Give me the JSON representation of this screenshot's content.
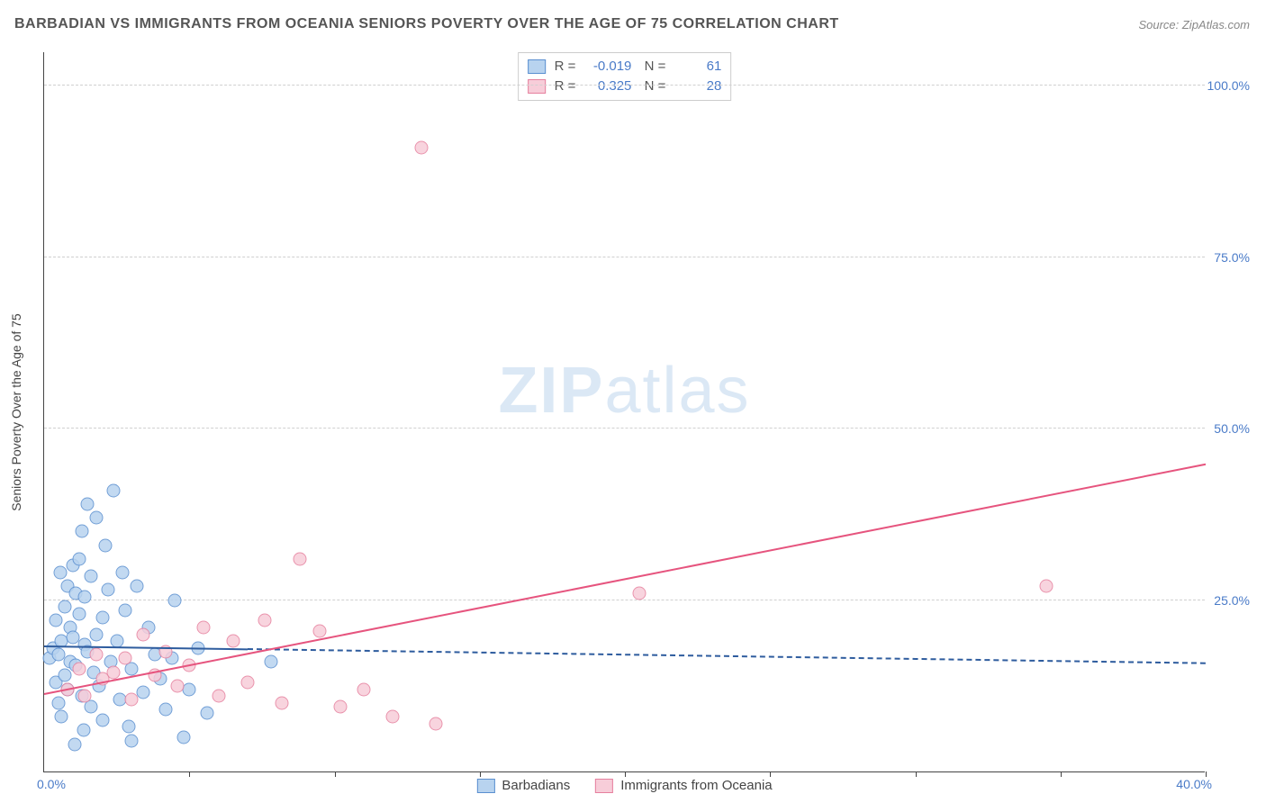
{
  "title": "BARBADIAN VS IMMIGRANTS FROM OCEANIA SENIORS POVERTY OVER THE AGE OF 75 CORRELATION CHART",
  "source": "Source: ZipAtlas.com",
  "watermark_a": "ZIP",
  "watermark_b": "atlas",
  "chart": {
    "y_label": "Seniors Poverty Over the Age of 75",
    "xlim": [
      0,
      40
    ],
    "ylim": [
      0,
      105
    ],
    "x_ticks_minor": [
      5,
      10,
      15,
      20,
      25,
      30,
      35,
      40
    ],
    "y_grid": [
      {
        "val": 25,
        "label": "25.0%"
      },
      {
        "val": 50,
        "label": "50.0%"
      },
      {
        "val": 75,
        "label": "75.0%"
      },
      {
        "val": 100,
        "label": "100.0%"
      }
    ],
    "x_origin_label": "0.0%",
    "x_end_label": "40.0%",
    "series": [
      {
        "name": "Barbadians",
        "fill": "#b8d3ef",
        "stroke": "#5a8fd0",
        "line_color": "#2e5c9e",
        "line_dash_after": 7,
        "trend": {
          "x1": 0,
          "y1": 18.5,
          "x2": 40,
          "y2": 16.0
        },
        "stats": {
          "R": "-0.019",
          "N": "61"
        },
        "points": [
          [
            0.2,
            16.5
          ],
          [
            0.3,
            18
          ],
          [
            0.4,
            13
          ],
          [
            0.4,
            22
          ],
          [
            0.5,
            10
          ],
          [
            0.5,
            17
          ],
          [
            0.6,
            19
          ],
          [
            0.6,
            8
          ],
          [
            0.7,
            14
          ],
          [
            0.7,
            24
          ],
          [
            0.8,
            27
          ],
          [
            0.8,
            12
          ],
          [
            0.9,
            21
          ],
          [
            0.9,
            16
          ],
          [
            1.0,
            30
          ],
          [
            1.0,
            19.5
          ],
          [
            1.1,
            26
          ],
          [
            1.1,
            15.5
          ],
          [
            1.2,
            31
          ],
          [
            1.2,
            23
          ],
          [
            1.3,
            35
          ],
          [
            1.3,
            11
          ],
          [
            1.4,
            25.5
          ],
          [
            1.4,
            18.5
          ],
          [
            1.5,
            39
          ],
          [
            1.5,
            17.5
          ],
          [
            1.6,
            9.5
          ],
          [
            1.6,
            28.5
          ],
          [
            1.7,
            14.5
          ],
          [
            1.8,
            37
          ],
          [
            1.8,
            20
          ],
          [
            1.9,
            12.5
          ],
          [
            2.0,
            22.5
          ],
          [
            2.0,
            7.5
          ],
          [
            2.1,
            33
          ],
          [
            2.2,
            26.5
          ],
          [
            2.3,
            16
          ],
          [
            2.4,
            41
          ],
          [
            2.5,
            19
          ],
          [
            2.6,
            10.5
          ],
          [
            2.7,
            29
          ],
          [
            2.8,
            23.5
          ],
          [
            3.0,
            15
          ],
          [
            3.0,
            4.5
          ],
          [
            3.2,
            27
          ],
          [
            3.4,
            11.5
          ],
          [
            3.6,
            21
          ],
          [
            3.8,
            17
          ],
          [
            4.0,
            13.5
          ],
          [
            4.2,
            9
          ],
          [
            4.5,
            25
          ],
          [
            4.8,
            5
          ],
          [
            5.0,
            12
          ],
          [
            5.3,
            18
          ],
          [
            5.6,
            8.5
          ],
          [
            2.9,
            6.5
          ],
          [
            1.05,
            4
          ],
          [
            1.35,
            6
          ],
          [
            0.55,
            29
          ],
          [
            7.8,
            16
          ],
          [
            4.4,
            16.5
          ]
        ]
      },
      {
        "name": "Immigrants from Oceania",
        "fill": "#f7cdd9",
        "stroke": "#e6809e",
        "line_color": "#e6547e",
        "line_dash_after": 999,
        "trend": {
          "x1": 0,
          "y1": 11.5,
          "x2": 40,
          "y2": 45
        },
        "stats": {
          "R": "0.325",
          "N": "28"
        },
        "points": [
          [
            0.8,
            12
          ],
          [
            1.2,
            15
          ],
          [
            1.4,
            11
          ],
          [
            1.8,
            17
          ],
          [
            2.0,
            13.5
          ],
          [
            2.4,
            14.5
          ],
          [
            2.8,
            16.5
          ],
          [
            3.0,
            10.5
          ],
          [
            3.4,
            20
          ],
          [
            3.8,
            14
          ],
          [
            4.2,
            17.5
          ],
          [
            4.6,
            12.5
          ],
          [
            5.0,
            15.5
          ],
          [
            5.5,
            21
          ],
          [
            6.0,
            11
          ],
          [
            6.5,
            19
          ],
          [
            7.0,
            13
          ],
          [
            7.6,
            22
          ],
          [
            8.2,
            10
          ],
          [
            8.8,
            31
          ],
          [
            9.5,
            20.5
          ],
          [
            10.2,
            9.5
          ],
          [
            11.0,
            12
          ],
          [
            12.0,
            8
          ],
          [
            13.5,
            7
          ],
          [
            13.0,
            91
          ],
          [
            20.5,
            26
          ],
          [
            34.5,
            27
          ]
        ]
      }
    ]
  }
}
